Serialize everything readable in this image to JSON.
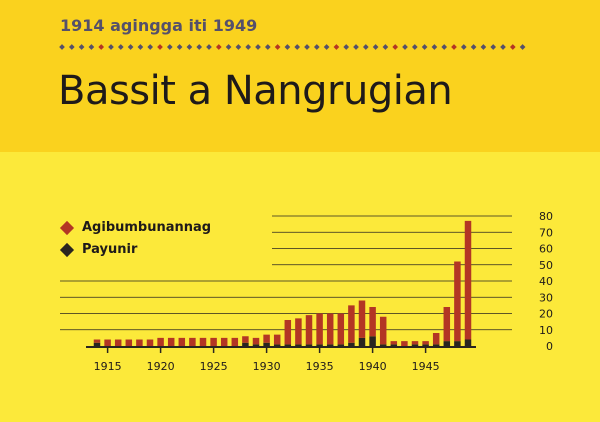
{
  "header": {
    "subtitle": "1914 agingga iti 1949",
    "title": "Bassit a Nangrugian"
  },
  "colors": {
    "header_bg": "#fad21e",
    "body_bg": "#fce93a",
    "series_red": "#b33624",
    "series_black": "#2a2520",
    "divider_red": "#b33624",
    "divider_dark": "#55506a"
  },
  "legend": [
    {
      "label": "Agibumbunannag",
      "color": "#b33624"
    },
    {
      "label": "Payunir",
      "color": "#2a2520"
    }
  ],
  "chart_data": {
    "type": "bar",
    "stacked": true,
    "x": [
      1914,
      1915,
      1916,
      1917,
      1918,
      1919,
      1920,
      1921,
      1922,
      1923,
      1924,
      1925,
      1926,
      1927,
      1928,
      1929,
      1930,
      1931,
      1932,
      1933,
      1934,
      1935,
      1936,
      1937,
      1938,
      1939,
      1940,
      1941,
      1942,
      1943,
      1944,
      1945,
      1946,
      1947,
      1948,
      1949
    ],
    "series": [
      {
        "name": "Payunir",
        "values": [
          2,
          0,
          0,
          0,
          0,
          0,
          0,
          0,
          0,
          0,
          0,
          0,
          0,
          0,
          2,
          1,
          2,
          1,
          1,
          1,
          1,
          1,
          1,
          1,
          2,
          5,
          6,
          1,
          1,
          0,
          1,
          1,
          1,
          3,
          3,
          4
        ]
      },
      {
        "name": "Agibumbunannag",
        "values": [
          2,
          4,
          4,
          4,
          4,
          4,
          5,
          5,
          5,
          5,
          5,
          5,
          5,
          5,
          4,
          4,
          5,
          6,
          15,
          16,
          18,
          19,
          19,
          19,
          23,
          23,
          18,
          17,
          2,
          3,
          2,
          2,
          7,
          21,
          49,
          73
        ]
      }
    ],
    "xticks": [
      "1915",
      "1920",
      "1925",
      "1930",
      "1935",
      "1940",
      "1945"
    ],
    "yticks": [
      "80",
      "70",
      "60",
      "50",
      "40",
      "30",
      "20",
      "10",
      "0"
    ],
    "ylim": [
      0,
      80
    ],
    "grid": true,
    "legend_position": "top-left"
  }
}
